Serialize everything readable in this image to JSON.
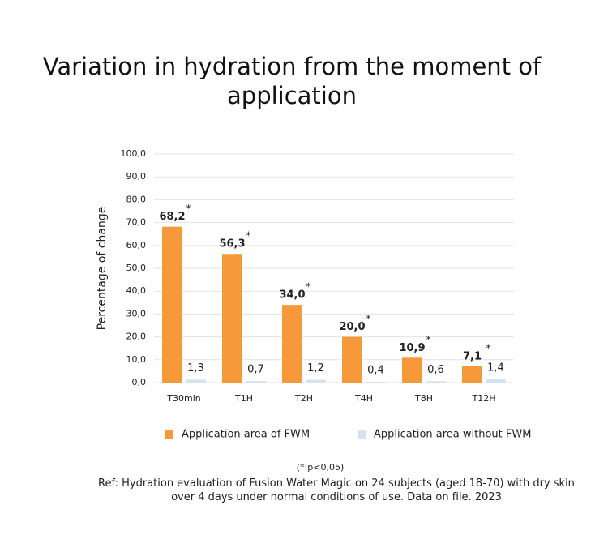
{
  "chart_data": {
    "type": "bar",
    "title": "Variation in hydration from the moment of application",
    "y_label": "Percentage of change",
    "categories": [
      "T30min",
      "T1H",
      "T2H",
      "T4H",
      "T8H",
      "T12H"
    ],
    "series": [
      {
        "name": "Application area of FWM",
        "color": "#f7983a",
        "values": [
          68.2,
          56.3,
          34.0,
          20.0,
          10.9,
          7.1
        ],
        "value_labels": [
          "68,2",
          "56,3",
          "34,0",
          "20,0",
          "10,9",
          "7,1"
        ],
        "significance": [
          "*",
          "*",
          "*",
          "*",
          "*",
          "*"
        ]
      },
      {
        "name": "Application area without FWM",
        "color": "#d4e2f2",
        "values": [
          1.3,
          0.7,
          1.2,
          0.4,
          0.6,
          1.4
        ],
        "value_labels": [
          "1,3",
          "0,7",
          "1,2",
          "0,4",
          "0,6",
          "1,4"
        ]
      }
    ],
    "ylim": [
      0,
      100
    ],
    "yticks": [
      {
        "value": 0,
        "label": "0,0"
      },
      {
        "value": 10,
        "label": "10,0"
      },
      {
        "value": 20,
        "label": "20,0"
      },
      {
        "value": 30,
        "label": "30,0"
      },
      {
        "value": 40,
        "label": "40,0"
      },
      {
        "value": 50,
        "label": "50,0"
      },
      {
        "value": 60,
        "label": "60,0"
      },
      {
        "value": 70,
        "label": "70,0"
      },
      {
        "value": 80,
        "label": "80,0"
      },
      {
        "value": 90,
        "label": "90,0"
      },
      {
        "value": 100,
        "label": "100,0"
      }
    ],
    "grid": true,
    "footnote": "(*:p<0,05)",
    "reference": "Ref: Hydration evaluation of Fusion Water Magic on 24 subjects (aged 18-70) with dry skin over 4 days under normal conditions of use. Data on file. 2023"
  }
}
